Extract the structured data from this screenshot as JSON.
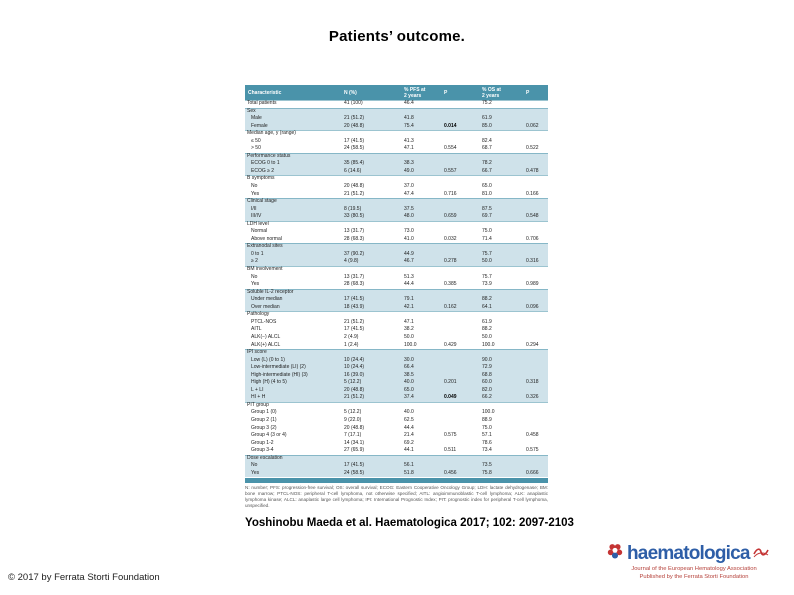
{
  "slide": {
    "title": "Patients’ outcome.",
    "citation": "Yoshinobu Maeda et al. Haematologica 2017; 102: 2097-2103",
    "copyright": "© 2017 by Ferrata Storti Foundation"
  },
  "table": {
    "columns": [
      "Characteristic",
      "N (%)",
      "% PFS at\n2 years",
      "P",
      "% OS at\n2 years",
      "P"
    ],
    "header_bg": "#4a93aa",
    "shade_color": "#cfe2ea",
    "sections": [
      {
        "label": null,
        "shaded": false,
        "rows": [
          [
            "Total patients",
            "41 (100)",
            "46.4",
            "",
            "75.2",
            ""
          ]
        ]
      },
      {
        "label": "Sex",
        "shaded": true,
        "rows": [
          [
            "Male",
            "21 (51.2)",
            "41.8",
            "",
            "61.9",
            ""
          ],
          [
            "Female",
            "20 (48.8)",
            "75.4",
            "**0.014**",
            "85.0",
            "0.062"
          ]
        ]
      },
      {
        "label": "Median age, y (range)",
        "shaded": false,
        "rows": [
          [
            "≤ 50",
            "17 (41.5)",
            "41.3",
            "",
            "82.4",
            ""
          ],
          [
            "> 50",
            "24 (58.5)",
            "47.1",
            "0.554",
            "68.7",
            "0.522"
          ]
        ]
      },
      {
        "label": "Performance status",
        "shaded": true,
        "rows": [
          [
            "ECOG 0 to 1",
            "35 (85.4)",
            "38.3",
            "",
            "78.2",
            ""
          ],
          [
            "ECOG ≥ 2",
            "6 (14.6)",
            "49.0",
            "0.557",
            "66.7",
            "0.478"
          ]
        ]
      },
      {
        "label": "B symptoms",
        "shaded": false,
        "rows": [
          [
            "No",
            "20 (48.8)",
            "37.0",
            "",
            "65.0",
            ""
          ],
          [
            "Yes",
            "21 (51.2)",
            "47.4",
            "0.716",
            "81.0",
            "0.166"
          ]
        ]
      },
      {
        "label": "Clinical stage",
        "shaded": true,
        "rows": [
          [
            "I/II",
            "8 (19.5)",
            "37.5",
            "",
            "87.5",
            ""
          ],
          [
            "III/IV",
            "33 (80.5)",
            "48.0",
            "0.659",
            "69.7",
            "0.548"
          ]
        ]
      },
      {
        "label": "LDH level",
        "shaded": false,
        "rows": [
          [
            "Normal",
            "13 (31.7)",
            "73.0",
            "",
            "75.0",
            ""
          ],
          [
            "Above normal",
            "28 (68.3)",
            "41.0",
            "0.032",
            "71.4",
            "0.706"
          ]
        ]
      },
      {
        "label": "Extranodal sites",
        "shaded": true,
        "rows": [
          [
            "0 to 1",
            "37 (90.2)",
            "44.9",
            "",
            "75.7",
            ""
          ],
          [
            "≥ 2",
            "4 (9.8)",
            "46.7",
            "0.278",
            "50.0",
            "0.316"
          ]
        ]
      },
      {
        "label": "BM involvement",
        "shaded": false,
        "rows": [
          [
            "No",
            "13 (31.7)",
            "51.3",
            "",
            "75.7",
            ""
          ],
          [
            "Yes",
            "28 (68.3)",
            "44.4",
            "0.385",
            "73.9",
            "0.989"
          ]
        ]
      },
      {
        "label": "Soluble IL-2 receptor",
        "shaded": true,
        "rows": [
          [
            "Under median",
            "17 (41.5)",
            "79.1",
            "",
            "88.2",
            ""
          ],
          [
            "Over median",
            "18 (43.9)",
            "42.1",
            "0.162",
            "64.1",
            "0.096"
          ]
        ]
      },
      {
        "label": "Pathology",
        "shaded": false,
        "rows": [
          [
            "PTCL-NOS",
            "21 (51.2)",
            "47.1",
            "",
            "61.9",
            ""
          ],
          [
            "AITL",
            "17 (41.5)",
            "38.2",
            "",
            "88.2",
            ""
          ],
          [
            "ALK(−) ALCL",
            "2 (4.9)",
            "50.0",
            "",
            "50.0",
            ""
          ],
          [
            "ALK(+) ALCL",
            "1 (2.4)",
            "100.0",
            "0.429",
            "100.0",
            "0.294"
          ]
        ]
      },
      {
        "label": "IPI score",
        "shaded": true,
        "rows": [
          [
            "Low (L) (0 to 1)",
            "10 (24.4)",
            "30.0",
            "",
            "90.0",
            ""
          ],
          [
            "Low-intermediate (LI) (2)",
            "10 (24.4)",
            "66.4",
            "",
            "72.9",
            ""
          ],
          [
            "High-intermediate (HI) (3)",
            "16 (39.0)",
            "38.5",
            "",
            "68.8",
            ""
          ],
          [
            "High (H) (4 to 5)",
            "5 (12.2)",
            "40.0",
            "0.201",
            "60.0",
            "0.318"
          ],
          [
            "L + LI",
            "20 (48.8)",
            "65.0",
            "",
            "82.0",
            ""
          ],
          [
            "HI + H",
            "21 (51.2)",
            "37.4",
            "**0.049**",
            "66.2",
            "0.326"
          ]
        ]
      },
      {
        "label": "PIT group",
        "shaded": false,
        "rows": [
          [
            "Group 1 (0)",
            "5 (12.2)",
            "40.0",
            "",
            "100.0",
            ""
          ],
          [
            "Group 2 (1)",
            "9 (22.0)",
            "62.5",
            "",
            "88.9",
            ""
          ],
          [
            "Group 3 (2)",
            "20 (48.8)",
            "44.4",
            "",
            "75.0",
            ""
          ],
          [
            "Group 4 (3 or 4)",
            "7 (17.1)",
            "21.4",
            "0.575",
            "57.1",
            "0.458"
          ],
          [
            "Group 1-2",
            "14 (34.1)",
            "69.2",
            "",
            "78.6",
            ""
          ],
          [
            "Group 3-4",
            "27 (65.9)",
            "44.1",
            "0.511",
            "73.4",
            "0.575"
          ]
        ]
      },
      {
        "label": "Dose escalation",
        "shaded": true,
        "rows": [
          [
            "No",
            "17 (41.5)",
            "56.1",
            "",
            "73.5",
            ""
          ],
          [
            "Yes",
            "24 (58.5)",
            "51.8",
            "0.456",
            "75.8",
            "0.666"
          ]
        ]
      }
    ],
    "footnote": "N: number; PFS: progression-free survival; OS: overall survival; ECOG: Eastern Cooperative Oncology Group; LDH: lactate dehydrogenase; BM: bone marrow; PTCL-NOS: peripheral T-cell lymphoma, not otherwise specified; AITL: angioimmunoblastic T-cell lymphoma; ALK: anaplastic lymphoma kinase; ALCL: anaplastic large cell lymphoma; IPI: International Prognostic Index; PIT: prognostic index for peripheral T-cell lymphoma, unspecified."
  },
  "logo": {
    "wordmark": "haematologica",
    "tagline1": "Journal of the European Hematology Association",
    "tagline2": "Published by the Ferrata Storti Foundation",
    "wordmark_color": "#2e5ea7",
    "tagline_color": "#b5413a",
    "rosette_icon": "haematologica-rosette",
    "ornament_icon": "red-flourish"
  }
}
